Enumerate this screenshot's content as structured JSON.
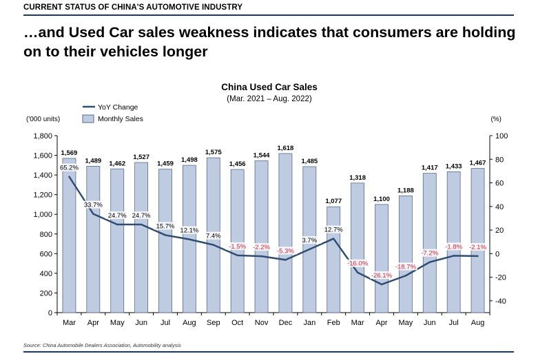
{
  "header": {
    "section_label": "CURRENT STATUS OF CHINA'S AUTOMOTIVE INDUSTRY",
    "headline": "…and Used Car sales weakness indicates that consumers are holding on to their vehicles longer"
  },
  "footer": {
    "source": "Source: China Automobile Dealers Association, Automobility analysis"
  },
  "colors": {
    "bar_fill": "#bfcbe0",
    "bar_stroke": "#556b8f",
    "line": "#2f4d73",
    "negative_label": "#e0203a",
    "rule": "#17375e"
  },
  "chart_data": {
    "type": "bar",
    "title": "China Used Car Sales",
    "subtitle": "(Mar. 2021 – Aug. 2022)",
    "ylabel": "('000 units)",
    "y2label": "(%)",
    "ylim": [
      0,
      1800
    ],
    "y_ticks": [
      "0",
      "200",
      "400",
      "600",
      "800",
      "1,000",
      "1,200",
      "1,400",
      "1,600",
      "1,800"
    ],
    "y2lim": [
      -50,
      100
    ],
    "y2_ticks": [
      "-40",
      "-20",
      "0",
      "20",
      "40",
      "60",
      "80",
      "100"
    ],
    "legend_placement": "top-left",
    "categories": [
      "Mar",
      "Apr",
      "May",
      "Jun",
      "Jul",
      "Aug",
      "Sep",
      "Oct",
      "Nov",
      "Dec",
      "Jan",
      "Feb",
      "Mar",
      "Apr",
      "May",
      "Jun",
      "Jul",
      "Aug"
    ],
    "series": [
      {
        "name": "Monthly Sales",
        "type": "bar",
        "axis": "left",
        "values": [
          1569,
          1489,
          1462,
          1527,
          1459,
          1498,
          1575,
          1456,
          1544,
          1618,
          1485,
          1077,
          1318,
          1100,
          1188,
          1417,
          1433,
          1467
        ],
        "labels": [
          "1,569",
          "1,489",
          "1,462",
          "1,527",
          "1,459",
          "1,498",
          "1,575",
          "1,456",
          "1,544",
          "1,618",
          "1,485",
          "1,077",
          "1,318",
          "1,100",
          "1,188",
          "1,417",
          "1,433",
          "1,467"
        ]
      },
      {
        "name": "YoY Change",
        "type": "line",
        "axis": "right",
        "values": [
          65.2,
          33.7,
          24.7,
          24.7,
          15.7,
          12.1,
          7.4,
          -1.5,
          -2.2,
          -5.3,
          3.7,
          12.7,
          -16.0,
          -26.1,
          -18.7,
          -7.2,
          -1.8,
          -2.1
        ],
        "labels": [
          "65.2%",
          "33.7%",
          "24.7%",
          "24.7%",
          "15.7%",
          "12.1%",
          "7.4%",
          "-1.5%",
          "-2.2%",
          "-5.3%",
          "3.7%",
          "12.7%",
          "-16.0%",
          "-26.1%",
          "-18.7%",
          "-7.2%",
          "-1.8%",
          "-2.1%"
        ]
      }
    ]
  }
}
